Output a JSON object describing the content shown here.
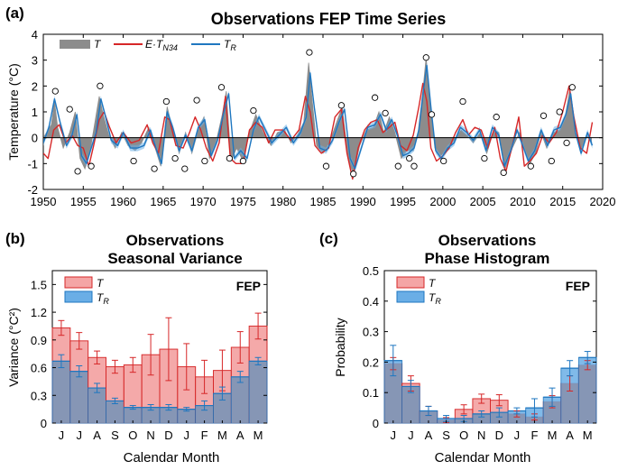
{
  "colors": {
    "gray": "#8c8c8c",
    "red": "#d62728",
    "red_fill": "#f4a5a5",
    "blue": "#1f77c0",
    "blue_fill": "#6aaee6",
    "overlap": "#8a8fa8"
  },
  "chart_data": [
    {
      "panel_label": "(a)",
      "type": "line",
      "title": "Observations FEP Time Series",
      "xlabel": "",
      "ylabel": "Temperature (°C)",
      "xlim": [
        1950,
        2020
      ],
      "ylim": [
        -2,
        4
      ],
      "xticks": [
        "1950",
        "1955",
        "1960",
        "1965",
        "1970",
        "1975",
        "1980",
        "1985",
        "1990",
        "1995",
        "2000",
        "2005",
        "2010",
        "2015",
        "2020"
      ],
      "yticks": [
        "-2",
        "-1",
        "0",
        "1",
        "2",
        "3",
        "4"
      ],
      "legend": [
        "T",
        "E·T_N34",
        "T_R"
      ],
      "legend_display": {
        "t": "T",
        "e": "E·T",
        "n34": "N34",
        "tr": "T",
        "r": "R"
      },
      "series": [
        {
          "name": "T",
          "style": "gray-area",
          "x": [
            1950,
            1951,
            1951.4,
            1951.8,
            1952.5,
            1953.3,
            1954,
            1954.6,
            1955.2,
            1955.8,
            1956.3,
            1957,
            1957.5,
            1958.2,
            1959,
            1959.8,
            1960.6,
            1961.5,
            1962.3,
            1963.2,
            1964,
            1964.7,
            1965.5,
            1966.2,
            1967,
            1967.8,
            1968.6,
            1969.4,
            1970.1,
            1970.8,
            1971.6,
            1972.4,
            1972.9,
            1973.5,
            1974.2,
            1975,
            1975.8,
            1976.6,
            1977.5,
            1978.5,
            1979.3,
            1980.2,
            1981,
            1981.8,
            1982.6,
            1983.2,
            1983.6,
            1984.2,
            1985,
            1985.8,
            1986.6,
            1987.4,
            1988.2,
            1988.8,
            1989.6,
            1990.4,
            1991.3,
            1992,
            1992.6,
            1993.3,
            1994,
            1994.8,
            1995.5,
            1996.3,
            1996.9,
            1997.5,
            1997.9,
            1998.4,
            1999,
            1999.7,
            2000.5,
            2001.4,
            2002.3,
            2003,
            2003.8,
            2004.7,
            2005.5,
            2006.4,
            2007,
            2007.8,
            2008.7,
            2009.6,
            2010.2,
            2010.9,
            2011.6,
            2012.3,
            2013,
            2013.8,
            2014.6,
            2015.3,
            2015.9,
            2016.5,
            2017.2,
            2018,
            2018.6
          ],
          "values": [
            0,
            0.5,
            1.4,
            0.4,
            -0.4,
            0.2,
            1.0,
            -0.8,
            -1.2,
            -0.6,
            0.3,
            1.6,
            0.9,
            0.1,
            -0.4,
            0.2,
            -0.3,
            -0.5,
            -0.2,
            0.4,
            -0.4,
            -1.1,
            1.2,
            0.3,
            -0.6,
            0.2,
            -0.6,
            0.3,
            0.8,
            -0.8,
            -0.2,
            0.9,
            1.8,
            -0.9,
            -0.4,
            -0.9,
            0.2,
            0.9,
            0.2,
            -0.3,
            0.2,
            0.3,
            -0.2,
            0.1,
            0.6,
            2.9,
            1.6,
            -0.3,
            -0.6,
            -0.2,
            0.5,
            1.2,
            -0.9,
            -1.4,
            -0.3,
            0.3,
            0.4,
            1.0,
            0.2,
            0.8,
            0.2,
            -0.8,
            -0.5,
            -0.5,
            0.2,
            1.8,
            3.1,
            1.4,
            -0.4,
            -0.7,
            -0.5,
            -0.1,
            0.3,
            0.1,
            -0.2,
            0.2,
            -0.6,
            0.3,
            0.2,
            -1.2,
            -0.4,
            0.2,
            -0.4,
            -1.0,
            -0.6,
            0.2,
            -0.4,
            0.2,
            0.3,
            0.8,
            1.9,
            0.3,
            -0.5,
            0.1,
            -0.2
          ]
        },
        {
          "name": "E·T_N34",
          "style": "red-line",
          "x": [
            1950,
            1950.6,
            1951.3,
            1952,
            1952.8,
            1953.6,
            1954.3,
            1955,
            1955.7,
            1956.3,
            1957,
            1957.6,
            1958.3,
            1959.1,
            1960,
            1961,
            1962,
            1963,
            1963.7,
            1964.4,
            1965.2,
            1965.8,
            1966.6,
            1967.5,
            1968.3,
            1969,
            1969.7,
            1970.4,
            1971.2,
            1972,
            1972.8,
            1973.4,
            1974.1,
            1975,
            1975.8,
            1976.6,
            1977.4,
            1978.2,
            1979,
            1980,
            1981,
            1982,
            1982.8,
            1983.4,
            1984,
            1984.8,
            1985.7,
            1986.5,
            1987.3,
            1988,
            1988.7,
            1989.4,
            1990.2,
            1991,
            1991.8,
            1992.5,
            1993.3,
            1994,
            1994.7,
            1995.5,
            1996.3,
            1997,
            1997.5,
            1998,
            1998.5,
            1999.2,
            2000,
            2000.8,
            2001.6,
            2002.5,
            2003.2,
            2004,
            2004.8,
            2005.6,
            2006.5,
            2007.2,
            2007.9,
            2008.7,
            2009.5,
            2010.2,
            2010.9,
            2011.7,
            2012.5,
            2013.3,
            2014.2,
            2015,
            2015.8,
            2016.4,
            2017.2,
            2018,
            2018.7
          ],
          "values": [
            -0.6,
            -0.8,
            0.3,
            0.5,
            -0.2,
            0.1,
            -0.3,
            -0.4,
            -1.1,
            -0.3,
            0.7,
            1.0,
            0.4,
            -0.2,
            0.2,
            -0.2,
            -0.1,
            0.5,
            -0.2,
            -0.6,
            0.8,
            0.7,
            -0.3,
            -0.4,
            0.2,
            0.8,
            0.3,
            -0.4,
            -0.9,
            -0.2,
            1.6,
            -0.8,
            -1.0,
            -1.0,
            0.3,
            0.6,
            0.4,
            -0.2,
            0.3,
            0.3,
            -0.1,
            0.3,
            1.6,
            1.0,
            -0.3,
            -0.6,
            -0.4,
            0.8,
            1.1,
            -0.6,
            -1.6,
            -0.4,
            0.3,
            0.6,
            0.7,
            0.2,
            0.4,
            0.6,
            -0.3,
            -0.5,
            0.1,
            1.2,
            2.1,
            1.4,
            -0.4,
            -0.9,
            -0.7,
            -0.4,
            0.2,
            0.7,
            0.1,
            0.4,
            0.3,
            -0.4,
            0.4,
            -0.8,
            -1.3,
            -0.3,
            0.8,
            -1.1,
            -0.9,
            -0.6,
            0.1,
            -0.2,
            0.2,
            1.0,
            2.0,
            0.8,
            -0.4,
            -0.6,
            0.6
          ]
        },
        {
          "name": "T_R",
          "style": "blue-line",
          "x": [
            1950,
            1950.7,
            1951.4,
            1952.1,
            1952.9,
            1953.6,
            1954.2,
            1954.8,
            1955.4,
            1956,
            1956.6,
            1957.2,
            1957.8,
            1958.5,
            1959.3,
            1960,
            1960.9,
            1961.8,
            1962.6,
            1963.4,
            1964.2,
            1964.8,
            1965.5,
            1966.2,
            1967,
            1967.8,
            1968.6,
            1969.4,
            1970.2,
            1971,
            1971.8,
            1972.6,
            1973.2,
            1973.9,
            1974.7,
            1975.5,
            1976.3,
            1977,
            1977.8,
            1978.6,
            1979.5,
            1980.4,
            1981.3,
            1982.2,
            1982.9,
            1983.4,
            1983.9,
            1984.6,
            1985.4,
            1986.2,
            1987,
            1987.7,
            1988.4,
            1989,
            1989.8,
            1990.6,
            1991.5,
            1992.2,
            1992.9,
            1993.6,
            1994.3,
            1995,
            1995.7,
            1996.4,
            1997,
            1997.6,
            1998,
            1998.5,
            1999.1,
            1999.8,
            2000.6,
            2001.4,
            2002.2,
            2003,
            2003.8,
            2004.6,
            2005.4,
            2006.2,
            2007,
            2007.7,
            2008.5,
            2009.3,
            2010,
            2010.7,
            2011.5,
            2012.3,
            2013.1,
            2013.9,
            2014.7,
            2015.4,
            2016,
            2016.6,
            2017.3,
            2018.1,
            2018.7
          ],
          "values": [
            -0.2,
            0.4,
            1.5,
            0.6,
            -0.3,
            0.1,
            0.9,
            -0.7,
            -1.0,
            -0.4,
            0.2,
            1.5,
            0.8,
            -0.1,
            -0.3,
            0.2,
            -0.4,
            -0.4,
            -0.3,
            0.3,
            -0.5,
            -1.0,
            1.0,
            0.4,
            -0.5,
            0.1,
            -0.5,
            0.4,
            0.7,
            -0.7,
            -0.1,
            1.0,
            1.7,
            -0.8,
            -0.5,
            -0.8,
            0.3,
            0.8,
            0.3,
            -0.2,
            0.1,
            0.4,
            -0.2,
            0.2,
            0.8,
            2.5,
            1.2,
            -0.4,
            -0.5,
            -0.1,
            0.6,
            1.1,
            -0.8,
            -1.2,
            -0.4,
            0.4,
            0.5,
            0.9,
            0.3,
            0.7,
            0.1,
            -0.7,
            -0.6,
            -0.4,
            0.3,
            1.9,
            2.8,
            1.2,
            -0.5,
            -0.8,
            -0.4,
            -0.2,
            0.4,
            0.2,
            -0.1,
            0.3,
            -0.5,
            0.4,
            0.1,
            -1.1,
            -0.5,
            0.3,
            -0.3,
            -0.9,
            -0.5,
            0.3,
            -0.3,
            0.3,
            0.4,
            0.9,
            1.7,
            0.2,
            -0.6,
            0.2,
            -0.3
          ]
        }
      ],
      "markers": {
        "x": [
          1951.5,
          1953.3,
          1954.3,
          1956,
          1957.1,
          1961.3,
          1963.9,
          1965.4,
          1966.5,
          1967.7,
          1969.2,
          1970.2,
          1972.3,
          1973.3,
          1975,
          1976.3,
          1983.3,
          1985.4,
          1987.3,
          1988.8,
          1991.5,
          1992.8,
          1994.4,
          1995.8,
          1996.4,
          1997.9,
          1998.6,
          2000.1,
          2002.5,
          2005.2,
          2006.7,
          2007.6,
          2011,
          2012.6,
          2013.6,
          2014.6,
          2015.5,
          2016.2
        ],
        "y": [
          1.8,
          1.1,
          -1.3,
          -1.1,
          2.0,
          -0.9,
          -1.2,
          1.4,
          -0.8,
          -1.2,
          1.45,
          -0.9,
          1.95,
          -0.8,
          -0.9,
          1.05,
          3.3,
          -1.1,
          1.25,
          -1.4,
          1.55,
          0.95,
          -1.1,
          -0.8,
          -1.1,
          3.1,
          0.9,
          -0.9,
          1.4,
          -0.8,
          0.8,
          -1.35,
          -1.1,
          0.85,
          -0.9,
          1.0,
          -0.2,
          1.95
        ]
      }
    },
    {
      "panel_label": "(b)",
      "type": "bar",
      "title": "Observations",
      "subtitle": "Seasonal Variance",
      "xlabel": "Calendar Month",
      "ylabel": "Variance (°C²)",
      "ylim": [
        0,
        1.65
      ],
      "yticks": [
        "0",
        "0.3",
        "0.6",
        "0.9",
        "1.2",
        "1.5"
      ],
      "categories": [
        "J",
        "J",
        "A",
        "S",
        "O",
        "N",
        "D",
        "J",
        "F",
        "M",
        "A",
        "M"
      ],
      "legend": [
        "T",
        "T_R"
      ],
      "legend_display": {
        "t": "T",
        "tr": "T",
        "r": "R"
      },
      "annotation": "FEP",
      "series": [
        {
          "name": "T",
          "values": [
            1.03,
            0.89,
            0.71,
            0.61,
            0.63,
            0.74,
            0.8,
            0.61,
            0.5,
            0.57,
            0.82,
            1.05
          ],
          "errors": [
            0.08,
            0.09,
            0.07,
            0.07,
            0.08,
            0.22,
            0.34,
            0.25,
            0.18,
            0.22,
            0.17,
            0.14
          ]
        },
        {
          "name": "T_R",
          "values": [
            0.67,
            0.56,
            0.38,
            0.24,
            0.17,
            0.17,
            0.17,
            0.15,
            0.19,
            0.32,
            0.5,
            0.67
          ],
          "errors": [
            0.07,
            0.06,
            0.05,
            0.03,
            0.02,
            0.03,
            0.03,
            0.02,
            0.05,
            0.07,
            0.06,
            0.04
          ]
        }
      ]
    },
    {
      "panel_label": "(c)",
      "type": "bar",
      "title": "Observations",
      "subtitle": "Phase Histogram",
      "xlabel": "Calendar Month",
      "ylabel": "Probability",
      "ylim": [
        0,
        0.5
      ],
      "yticks": [
        "0",
        "0.1",
        "0.2",
        "0.3",
        "0.4",
        "0.5"
      ],
      "categories": [
        "J",
        "J",
        "A",
        "S",
        "O",
        "N",
        "D",
        "J",
        "F",
        "M",
        "A",
        "M"
      ],
      "legend": [
        "T",
        "T_R"
      ],
      "legend_display": {
        "t": "T",
        "tr": "T",
        "r": "R"
      },
      "annotation": "FEP",
      "series": [
        {
          "name": "T",
          "values": [
            0.195,
            0.13,
            0.04,
            0.01,
            0.045,
            0.08,
            0.075,
            0.03,
            0.02,
            0.07,
            0.13,
            0.19
          ],
          "errors": [
            0.02,
            0.025,
            0.015,
            0.008,
            0.015,
            0.015,
            0.018,
            0.01,
            0.01,
            0.02,
            0.025,
            0.015
          ]
        },
        {
          "name": "T_R",
          "values": [
            0.205,
            0.12,
            0.04,
            0.015,
            0.015,
            0.03,
            0.035,
            0.04,
            0.05,
            0.085,
            0.18,
            0.215
          ],
          "errors": [
            0.05,
            0.02,
            0.015,
            0.01,
            0.01,
            0.01,
            0.015,
            0.01,
            0.03,
            0.03,
            0.025,
            0.02
          ]
        }
      ]
    }
  ]
}
